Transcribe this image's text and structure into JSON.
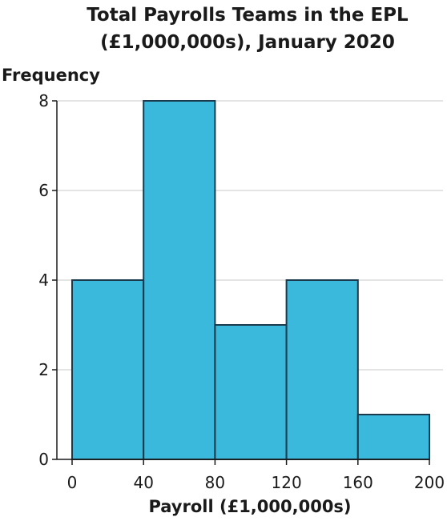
{
  "chart_data": {
    "type": "bar",
    "title_lines": [
      "Total Payrolls Teams in the EPL",
      "(£1,000,000s), January 2020"
    ],
    "xlabel": "Payroll (£1,000,000s)",
    "ylabel": "Frequency",
    "bins": [
      {
        "from": 0,
        "to": 40,
        "value": 4
      },
      {
        "from": 40,
        "to": 80,
        "value": 8
      },
      {
        "from": 80,
        "to": 120,
        "value": 3
      },
      {
        "from": 120,
        "to": 160,
        "value": 4
      },
      {
        "from": 160,
        "to": 200,
        "value": 1
      }
    ],
    "xlim": [
      0,
      200
    ],
    "ylim": [
      0,
      8
    ],
    "xticks": [
      0,
      40,
      80,
      120,
      160,
      200
    ],
    "yticks": [
      0,
      2,
      4,
      6,
      8
    ],
    "grid": true,
    "bar_color": "#3bb9dc",
    "bar_edge_color": "#1b3a4b"
  }
}
